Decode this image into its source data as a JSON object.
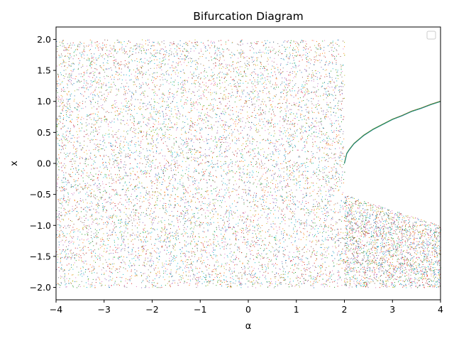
{
  "chart_data": {
    "type": "scatter",
    "title": "Bifurcation Diagram",
    "xlabel": "α",
    "ylabel": "x",
    "xlim": [
      -4,
      4
    ],
    "ylim": [
      -2.2,
      2.2
    ],
    "x_ticks": [
      -4,
      -3,
      -2,
      -1,
      0,
      1,
      2,
      3,
      4
    ],
    "x_tick_labels": [
      "−4",
      "−3",
      "−2",
      "−1",
      "0",
      "1",
      "2",
      "3",
      "4"
    ],
    "y_ticks": [
      -2.0,
      -1.5,
      -1.0,
      -0.5,
      0.0,
      0.5,
      1.0,
      1.5,
      2.0
    ],
    "y_tick_labels": [
      "−2.0",
      "−1.5",
      "−1.0",
      "−0.5",
      "0.0",
      "0.5",
      "1.0",
      "1.5",
      "2.0"
    ],
    "legend": {
      "placement": "top-right",
      "entries": []
    },
    "grid": false,
    "series_colors": [
      "#1f77b4",
      "#ff7f0e",
      "#2ca02c",
      "#d62728",
      "#9467bd",
      "#8c564b",
      "#e377c2",
      "#7f7f7f",
      "#bcbd22",
      "#17becf"
    ],
    "regions": [
      {
        "name": "chaotic-band-left",
        "alpha_range": [
          -4.0,
          2.0
        ],
        "x_range": [
          -2.0,
          2.0
        ]
      },
      {
        "name": "chaotic-band-right",
        "alpha_range": [
          2.0,
          4.0
        ],
        "x_lower": -2.0,
        "x_upper_curve": "x = -alpha/4 (from -0.5 at alpha=2 to -1.0 at alpha=4)"
      }
    ],
    "stable_branch": {
      "description": "x = sqrt(alpha - 2) / sqrt(2)",
      "alpha": [
        2.0,
        2.05,
        2.1,
        2.2,
        2.4,
        2.6,
        2.8,
        3.0,
        3.2,
        3.4,
        3.6,
        3.8,
        4.0
      ],
      "x": [
        0.0,
        0.16,
        0.22,
        0.32,
        0.45,
        0.55,
        0.63,
        0.71,
        0.77,
        0.84,
        0.89,
        0.95,
        1.0
      ]
    }
  }
}
